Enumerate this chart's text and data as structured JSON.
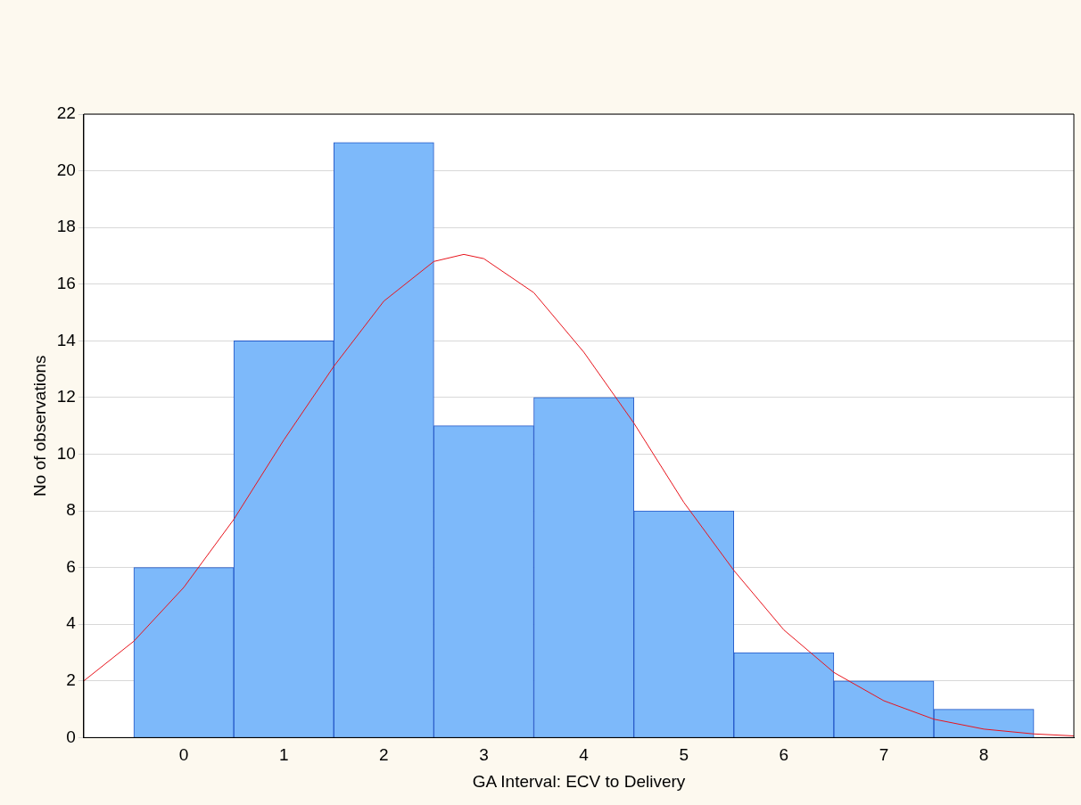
{
  "chart_data": {
    "type": "histogram",
    "xlabel": "GA Interval: ECV to Delivery",
    "ylabel": "No of observations",
    "bins": [
      -0.5,
      0.5,
      1.5,
      2.5,
      3.5,
      4.5,
      5.5,
      6.5,
      7.5,
      8.5
    ],
    "values": [
      6,
      14,
      21,
      11,
      12,
      8,
      3,
      2,
      1
    ],
    "color": "#7db9fa",
    "series": [
      {
        "type": "line",
        "color": "#e8141c",
        "x": [
          -1,
          -0.5,
          0,
          0.5,
          1,
          1.5,
          2,
          2.5,
          2.8,
          3,
          3.5,
          4,
          4.5,
          5,
          5.5,
          6,
          6.5,
          7,
          7.5,
          8,
          8.5,
          8.9
        ],
        "values": [
          2.0,
          3.4,
          5.3,
          7.7,
          10.5,
          13.1,
          15.4,
          16.8,
          17.05,
          16.9,
          15.7,
          13.6,
          11.1,
          8.3,
          5.9,
          3.8,
          2.3,
          1.3,
          0.65,
          0.3,
          0.13,
          0.06
        ]
      }
    ],
    "xlim": [
      -1,
      8.9
    ],
    "xticks": [
      0,
      1,
      2,
      3,
      4,
      5,
      6,
      7,
      8
    ],
    "ylim": [
      0,
      22
    ],
    "yticks": [
      0,
      2,
      4,
      6,
      8,
      10,
      12,
      14,
      16,
      18,
      20,
      22
    ],
    "grid": "y",
    "legend": false,
    "marker": "none",
    "line_style": "solid"
  }
}
